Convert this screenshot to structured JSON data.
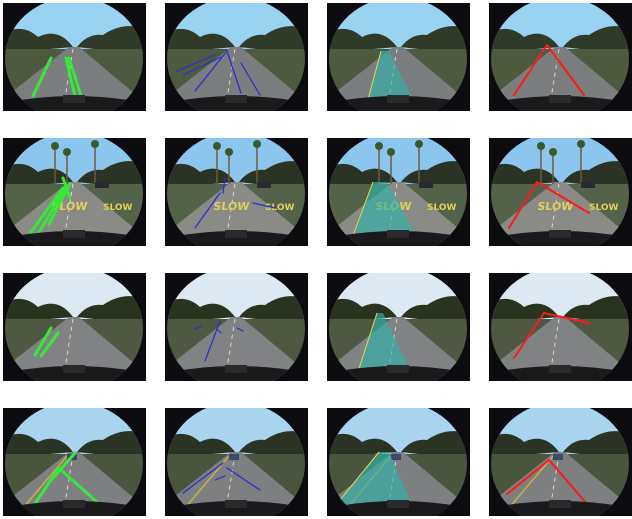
{
  "grid": {
    "rows": 4,
    "cols": 4
  },
  "overlay_colors": {
    "raw": "#38e838",
    "candidates": "#2a2ad8",
    "region": "#2fb3a8",
    "fit": "#ff1a1a"
  },
  "columns": [
    "raw",
    "candidates",
    "region",
    "fit"
  ],
  "scenes": [
    {
      "row": 0,
      "sky": "#9ad2f2",
      "road": "#7b7d7e",
      "side": "#4e5a40",
      "trees": "#2f3a28",
      "features": [
        "clear-road"
      ],
      "raw": [
        [
          30,
          93,
          48,
          55
        ],
        [
          72,
          93,
          63,
          55
        ],
        [
          78,
          93,
          66,
          55
        ]
      ],
      "candidates": [
        [
          12,
          68,
          50,
          52
        ],
        [
          18,
          72,
          56,
          54
        ],
        [
          30,
          88,
          62,
          48
        ],
        [
          76,
          90,
          62,
          48
        ],
        [
          95,
          92,
          76,
          60
        ]
      ],
      "region": {
        "left_bottom": 38,
        "left_top": 54,
        "right_top": 62,
        "right_bottom": 92,
        "top": 48
      },
      "fit": [
        [
          25,
          92,
          58,
          42
        ],
        [
          58,
          42,
          95,
          92
        ]
      ]
    },
    {
      "row": 1,
      "sky": "#8cc6ee",
      "road": "#8a8a86",
      "side": "#55624a",
      "trees": "#2b3324",
      "features": [
        "slow-marking",
        "palms",
        "parked-car"
      ],
      "raw": [
        [
          28,
          94,
          60,
          50
        ],
        [
          35,
          96,
          62,
          50
        ],
        [
          46,
          86,
          67,
          46
        ],
        [
          67,
          60,
          60,
          40
        ]
      ],
      "candidates": [
        [
          30,
          90,
          55,
          55
        ],
        [
          58,
          55,
          60,
          40
        ],
        [
          88,
          65,
          110,
          70
        ]
      ],
      "region": {
        "left_bottom": 22,
        "left_top": 46,
        "right_top": 60,
        "right_bottom": 95,
        "top": 44
      },
      "fit": [
        [
          20,
          90,
          48,
          44
        ],
        [
          48,
          44,
          100,
          75
        ]
      ]
    },
    {
      "row": 2,
      "sky": "#dce8f2",
      "road": "#808283",
      "side": "#4e5843",
      "trees": "#2a3320",
      "features": [
        "tree-lined"
      ],
      "raw": [
        [
          32,
          82,
          48,
          55
        ],
        [
          38,
          83,
          55,
          60
        ]
      ],
      "candidates": [
        [
          40,
          88,
          55,
          48
        ],
        [
          30,
          56,
          37,
          53
        ],
        [
          52,
          56,
          56,
          60
        ],
        [
          72,
          55,
          78,
          58
        ]
      ],
      "region": {
        "left_bottom": 28,
        "left_top": 50,
        "right_top": 56,
        "right_bottom": 88,
        "top": 40
      },
      "fit": [
        [
          25,
          85,
          55,
          40
        ],
        [
          55,
          40,
          100,
          50
        ]
      ]
    },
    {
      "row": 3,
      "sky": "#a8d4f0",
      "road": "#7e7f80",
      "side": "#4a5540",
      "trees": "#2b3424",
      "features": [
        "yellow-line",
        "lead-car"
      ],
      "raw": [
        [
          33,
          94,
          56,
          60
        ],
        [
          58,
          62,
          95,
          95
        ],
        [
          50,
          70,
          72,
          45
        ]
      ],
      "candidates": [
        [
          18,
          85,
          58,
          55
        ],
        [
          62,
          60,
          95,
          82
        ],
        [
          50,
          72,
          60,
          68
        ]
      ],
      "region": {
        "left_bottom": 0,
        "left_top": 52,
        "right_top": 62,
        "right_bottom": 90,
        "top": 44
      },
      "fit": [
        [
          18,
          86,
          60,
          52
        ],
        [
          60,
          52,
          98,
          96
        ]
      ]
    }
  ]
}
